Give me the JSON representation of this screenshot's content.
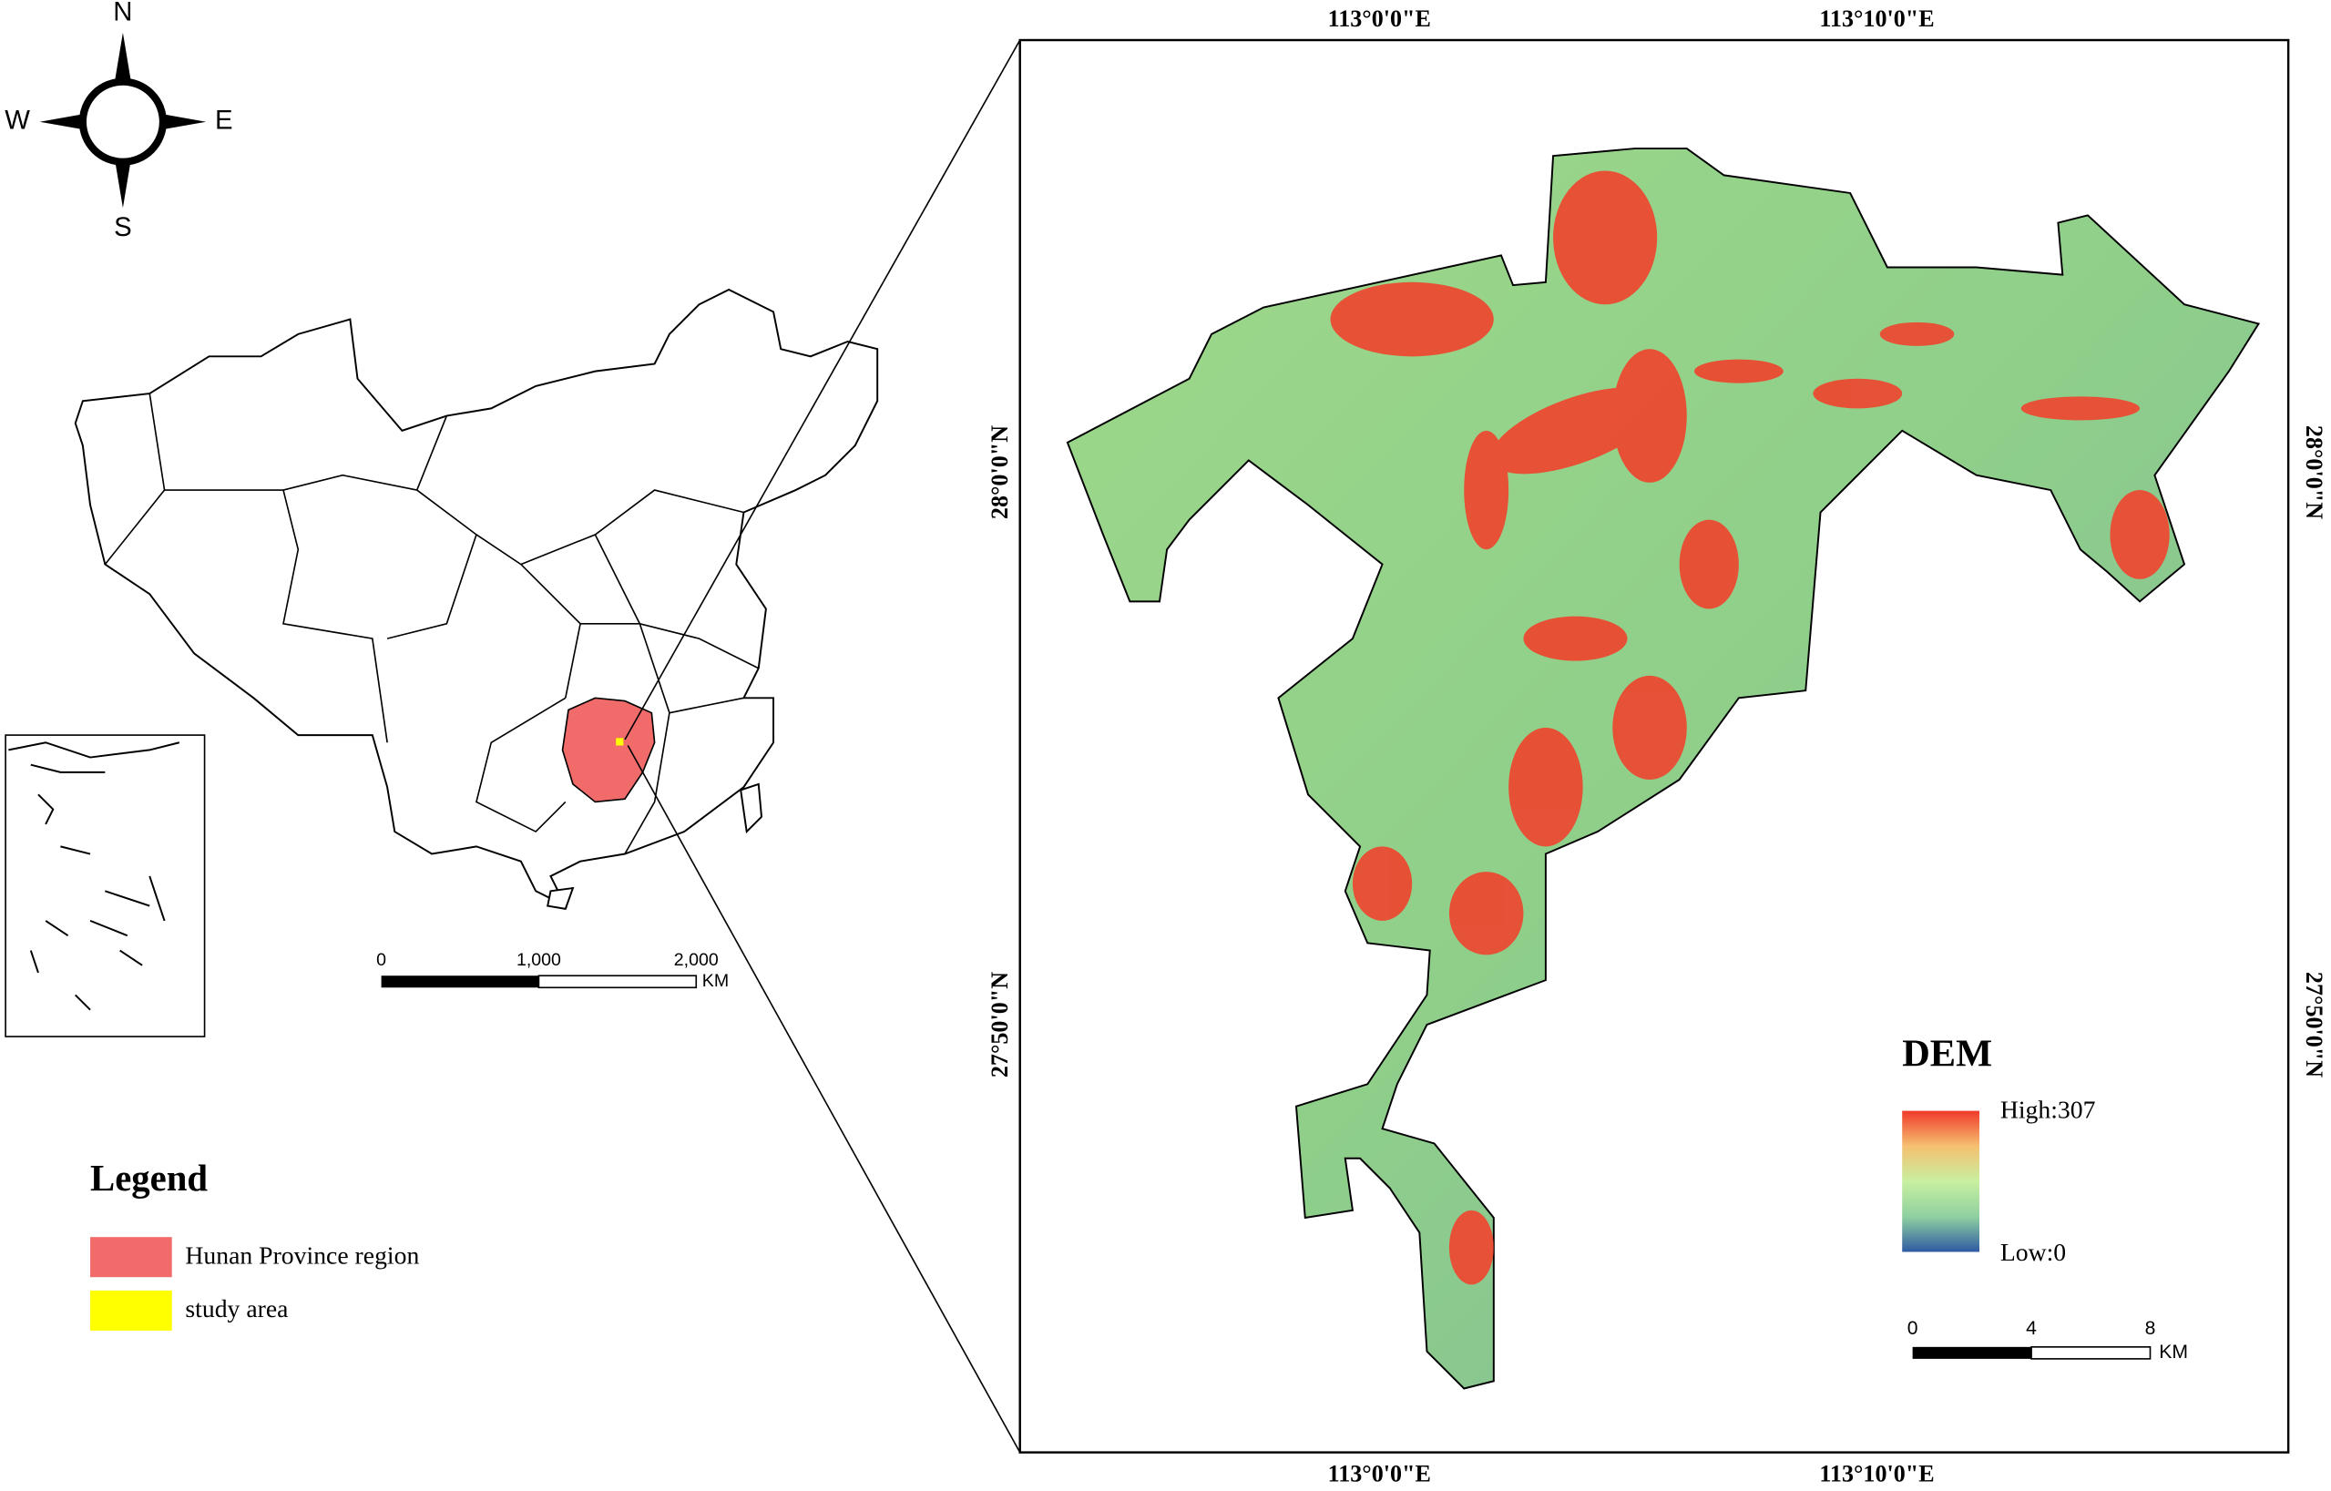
{
  "compass": {
    "north": "N",
    "south": "S",
    "east": "E",
    "west": "W"
  },
  "overview_scale": {
    "labels": [
      "0",
      "1,000",
      "2,000"
    ],
    "unit": "KM"
  },
  "legend": {
    "title": "Legend",
    "items": [
      {
        "label": "Hunan Province region",
        "color": "#f26b6b"
      },
      {
        "label": "study area",
        "color": "#ffff00"
      }
    ]
  },
  "map": {
    "top_ticks": [
      "113°0'0\"E",
      "113°10'0\"E"
    ],
    "bottom_ticks": [
      "113°0'0\"E",
      "113°10'0\"E"
    ],
    "left_ticks": [
      "28°0'0\"N",
      "27°50'0\"N"
    ],
    "right_ticks": [
      "28°0'0\"N",
      "27°50'0\"N"
    ]
  },
  "dem_legend": {
    "title": "DEM",
    "high": "High:307",
    "low": "Low:0"
  },
  "dem_scale": {
    "labels": [
      "0",
      "4",
      "8"
    ],
    "unit": "KM"
  }
}
